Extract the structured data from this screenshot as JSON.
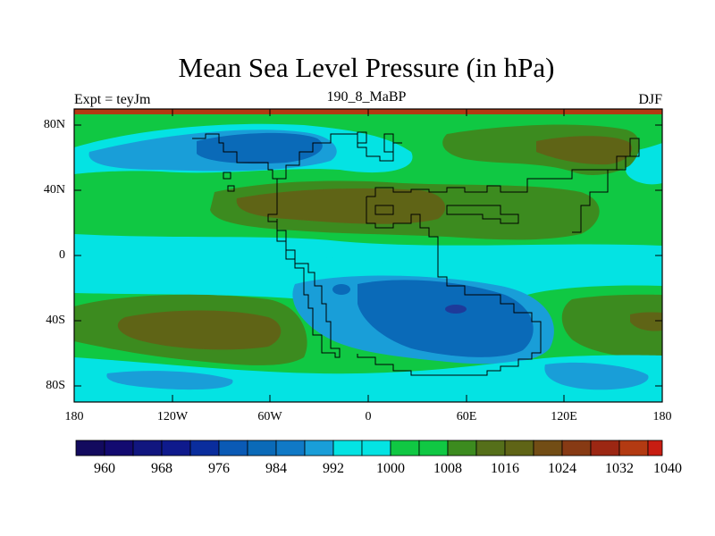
{
  "map": {
    "title": "Mean Sea Level Pressure (in hPa)",
    "left_label": "Expt = teyJm",
    "center_label": "190_8_MaBP",
    "right_label": "DJF",
    "y_ticks": [
      "80N",
      "40N",
      "0",
      "40S",
      "80S"
    ],
    "x_ticks": [
      "180",
      "120W",
      "60W",
      "0",
      "60E",
      "120E",
      "180"
    ],
    "colorbar_labels": [
      "960",
      "968",
      "976",
      "984",
      "992",
      "1000",
      "1008",
      "1016",
      "1024",
      "1032",
      "1040"
    ],
    "colors": {
      "deep_low": "#0a6ab8",
      "low": "#199ed8",
      "mid": "#04e3e3",
      "green": "#10c843",
      "olive": "#3c8b1f",
      "brown": "#5f6416",
      "red_brown": "#b33a12"
    }
  }
}
